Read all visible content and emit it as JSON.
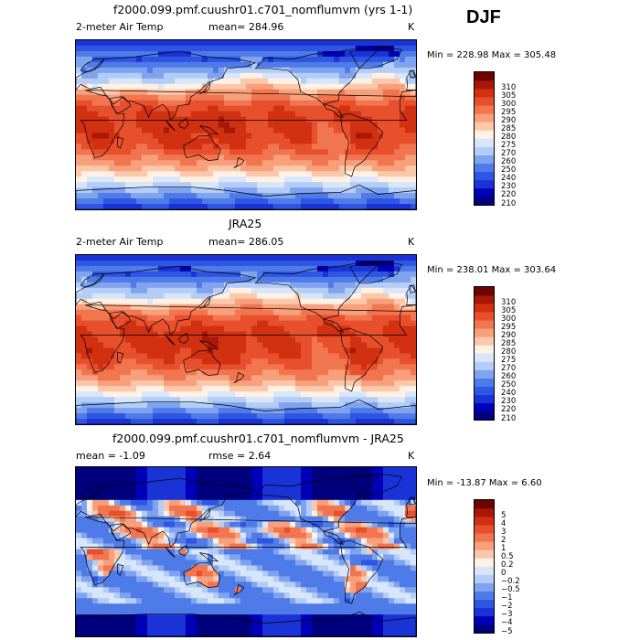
{
  "season": "DJF",
  "units": "K",
  "panels": [
    {
      "title": "f2000.099.pmf.cuushr01.c701_nomflumvm (yrs 1-1)",
      "variable": "2-meter Air Temp",
      "stat1": "mean=  284.96",
      "stat2": "",
      "units": "K",
      "minmax": "Min = 228.98  Max = 305.48"
    },
    {
      "title": "JRA25",
      "variable": "2-meter Air Temp",
      "stat1": "mean=  286.05",
      "stat2": "",
      "units": "K",
      "minmax": "Min = 238.01  Max = 303.64"
    },
    {
      "title": "f2000.099.pmf.cuushr01.c701_nomflumvm - JRA25",
      "variable": "",
      "stat1": "mean =   -1.09",
      "stat2": "rmse =    2.64",
      "units": "K",
      "minmax": "Min = -13.87  Max =    6.60"
    }
  ],
  "chart_data": [
    {
      "type": "heatmap",
      "title": "f2000.099.pmf.cuushr01.c701_nomflumvm (yrs 1-1)",
      "variable": "2-meter Air Temp",
      "units": "K",
      "mean": 284.96,
      "min": 228.98,
      "max": 305.48,
      "levels": [
        210,
        220,
        230,
        240,
        250,
        260,
        270,
        275,
        280,
        285,
        290,
        295,
        300,
        305,
        310
      ],
      "colors": [
        "#00007e",
        "#0000b8",
        "#1a33d6",
        "#2f56e3",
        "#4f7be9",
        "#7fa3ef",
        "#b3cdf7",
        "#d8e6fb",
        "#fff1e4",
        "#fcc8ab",
        "#f8a07c",
        "#f17650",
        "#e8502d",
        "#d13011",
        "#a81708",
        "#6d0400"
      ]
    },
    {
      "type": "heatmap",
      "title": "JRA25",
      "variable": "2-meter Air Temp",
      "units": "K",
      "mean": 286.05,
      "min": 238.01,
      "max": 303.64,
      "levels": [
        210,
        220,
        230,
        240,
        250,
        260,
        270,
        275,
        280,
        285,
        290,
        295,
        300,
        305,
        310
      ],
      "colors": [
        "#00007e",
        "#0000b8",
        "#1a33d6",
        "#2f56e3",
        "#4f7be9",
        "#7fa3ef",
        "#b3cdf7",
        "#d8e6fb",
        "#fff1e4",
        "#fcc8ab",
        "#f8a07c",
        "#f17650",
        "#e8502d",
        "#d13011",
        "#a81708",
        "#6d0400"
      ]
    },
    {
      "type": "heatmap",
      "title": "f2000.099.pmf.cuushr01.c701_nomflumvm - JRA25",
      "units": "K",
      "mean": -1.09,
      "rmse": 2.64,
      "min": -13.87,
      "max": 6.6,
      "levels": [
        -5,
        -4,
        -3,
        -2,
        -1,
        -0.5,
        -0.2,
        0,
        0.2,
        0.5,
        1,
        2,
        3,
        4,
        5
      ],
      "colors": [
        "#00007e",
        "#0000b8",
        "#1a33d6",
        "#2f56e3",
        "#4f7be9",
        "#7fa3ef",
        "#b3cdf7",
        "#d8e6fb",
        "#fff1e4",
        "#fcc8ab",
        "#f8a07c",
        "#f17650",
        "#e8502d",
        "#d13011",
        "#a81708",
        "#6d0400"
      ]
    }
  ]
}
